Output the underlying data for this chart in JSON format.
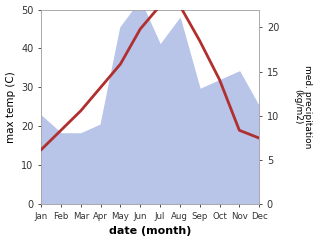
{
  "months": [
    "Jan",
    "Feb",
    "Mar",
    "Apr",
    "May",
    "Jun",
    "Jul",
    "Aug",
    "Sep",
    "Oct",
    "Nov",
    "Dec"
  ],
  "temperature": [
    14,
    19,
    24,
    30,
    36,
    45,
    51,
    51,
    42,
    32,
    19,
    17
  ],
  "precipitation": [
    10,
    8,
    8,
    9,
    20,
    23,
    18,
    21,
    13,
    14,
    15,
    11
  ],
  "temp_color": "#b03030",
  "precip_fill_color": "#b8c4e8",
  "ylim_temp": [
    0,
    50
  ],
  "ylim_precip": [
    0,
    22
  ],
  "yticks_temp": [
    0,
    10,
    20,
    30,
    40,
    50
  ],
  "yticks_precip": [
    0,
    5,
    10,
    15,
    20
  ],
  "xlabel": "date (month)",
  "ylabel_left": "max temp (C)",
  "ylabel_right": "med. precipitation\n(kg/m2)",
  "temp_linewidth": 2.0,
  "background_color": "#ffffff"
}
